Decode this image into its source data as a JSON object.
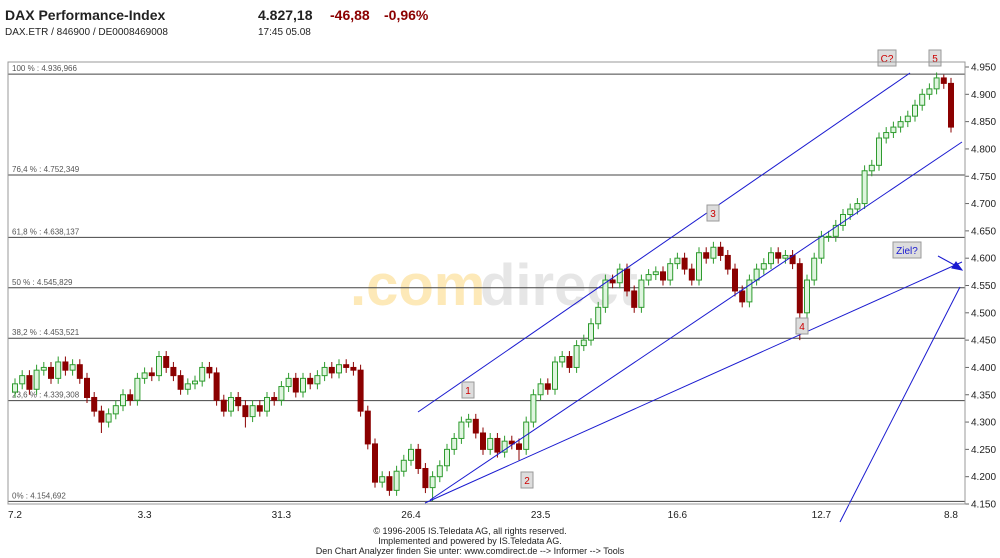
{
  "header": {
    "title": "DAX Performance-Index",
    "price": "4.827,18",
    "change": "-46,88",
    "change_pct": "-0,96%",
    "ids": "DAX.ETR / 846900 / DE0008469008",
    "time": "17:45  05.08"
  },
  "chart_data": {
    "type": "candlestick",
    "watermark_a": ".com",
    "watermark_b": "direct",
    "up_color": "#2e9b2e",
    "down_color": "#8b0000",
    "categories": [
      "7.2",
      null,
      null,
      null,
      null,
      null,
      null,
      null,
      null,
      null,
      null,
      null,
      null,
      null,
      null,
      null,
      null,
      null,
      "3.3",
      null,
      null,
      null,
      null,
      null,
      null,
      null,
      null,
      null,
      null,
      null,
      null,
      null,
      null,
      null,
      null,
      null,
      null,
      "31.3",
      null,
      null,
      null,
      null,
      null,
      null,
      null,
      null,
      null,
      null,
      null,
      null,
      null,
      null,
      null,
      null,
      null,
      "26.4",
      null,
      null,
      null,
      null,
      null,
      null,
      null,
      null,
      null,
      null,
      null,
      null,
      null,
      null,
      null,
      null,
      null,
      "23.5",
      null,
      null,
      null,
      null,
      null,
      null,
      null,
      null,
      null,
      null,
      null,
      null,
      null,
      null,
      null,
      null,
      null,
      null,
      "16.6",
      null,
      null,
      null,
      null,
      null,
      null,
      null,
      null,
      null,
      null,
      null,
      null,
      null,
      null,
      null,
      null,
      null,
      null,
      null,
      "12.7",
      null,
      null,
      null,
      null,
      null,
      null,
      null,
      null,
      null,
      null,
      null,
      null,
      null,
      null,
      null,
      null,
      null,
      "8.8"
    ],
    "open": [
      4355,
      4370,
      4385,
      4360,
      4395,
      4400,
      4380,
      4410,
      4395,
      4405,
      4380,
      4345,
      4320,
      4300,
      4315,
      4330,
      4350,
      4340,
      4380,
      4390,
      4385,
      4420,
      4400,
      4385,
      4360,
      4370,
      4375,
      4400,
      4390,
      4340,
      4320,
      4345,
      4330,
      4310,
      4330,
      4320,
      4345,
      4340,
      4365,
      4380,
      4355,
      4380,
      4370,
      4385,
      4400,
      4390,
      4405,
      4400,
      4395,
      4320,
      4260,
      4190,
      4200,
      4175,
      4210,
      4230,
      4250,
      4215,
      4180,
      4200,
      4220,
      4250,
      4270,
      4300,
      4305,
      4280,
      4250,
      4270,
      4245,
      4265,
      4260,
      4250,
      4300,
      4350,
      4370,
      4360,
      4410,
      4420,
      4400,
      4440,
      4450,
      4480,
      4510,
      4560,
      4555,
      4580,
      4540,
      4510,
      4560,
      4570,
      4575,
      4560,
      4590,
      4600,
      4580,
      4560,
      4610,
      4600,
      4620,
      4605,
      4580,
      4540,
      4520,
      4560,
      4580,
      4590,
      4610,
      4600,
      4605,
      4590,
      4500,
      4560,
      4600,
      4640,
      4640,
      4660,
      4680,
      4690,
      4700,
      4760,
      4770,
      4820,
      4830,
      4840,
      4850,
      4860,
      4880,
      4900,
      4910,
      4930,
      4920
    ],
    "high": [
      4380,
      4395,
      4395,
      4405,
      4410,
      4410,
      4420,
      4420,
      4415,
      4415,
      4390,
      4355,
      4330,
      4325,
      4340,
      4360,
      4360,
      4390,
      4400,
      4400,
      4430,
      4430,
      4410,
      4395,
      4380,
      4385,
      4410,
      4410,
      4400,
      4350,
      4355,
      4355,
      4340,
      4340,
      4340,
      4355,
      4355,
      4375,
      4390,
      4390,
      4390,
      4390,
      4395,
      4410,
      4410,
      4415,
      4415,
      4410,
      4405,
      4330,
      4270,
      4210,
      4210,
      4220,
      4240,
      4260,
      4260,
      4225,
      4210,
      4230,
      4260,
      4280,
      4310,
      4315,
      4315,
      4290,
      4280,
      4280,
      4275,
      4275,
      4270,
      4310,
      4360,
      4380,
      4380,
      4420,
      4430,
      4430,
      4450,
      4460,
      4490,
      4520,
      4570,
      4570,
      4590,
      4590,
      4550,
      4570,
      4580,
      4585,
      4585,
      4600,
      4610,
      4610,
      4590,
      4620,
      4620,
      4630,
      4630,
      4615,
      4590,
      4550,
      4570,
      4590,
      4600,
      4620,
      4620,
      4615,
      4615,
      4600,
      4570,
      4610,
      4650,
      4650,
      4670,
      4690,
      4700,
      4710,
      4770,
      4780,
      4830,
      4840,
      4850,
      4860,
      4870,
      4890,
      4910,
      4920,
      4940,
      4936,
      4930
    ],
    "low": [
      4345,
      4360,
      4350,
      4350,
      4385,
      4370,
      4370,
      4385,
      4385,
      4370,
      4335,
      4310,
      4280,
      4290,
      4305,
      4320,
      4330,
      4330,
      4370,
      4375,
      4375,
      4390,
      4375,
      4350,
      4350,
      4360,
      4365,
      4380,
      4330,
      4310,
      4310,
      4320,
      4290,
      4300,
      4310,
      4310,
      4330,
      4330,
      4355,
      4345,
      4345,
      4360,
      4360,
      4375,
      4380,
      4380,
      4390,
      4385,
      4310,
      4250,
      4180,
      4180,
      4165,
      4165,
      4200,
      4220,
      4205,
      4170,
      4155,
      4190,
      4210,
      4240,
      4260,
      4290,
      4270,
      4240,
      4240,
      4235,
      4235,
      4250,
      4230,
      4240,
      4290,
      4340,
      4350,
      4350,
      4400,
      4390,
      4390,
      4430,
      4440,
      4470,
      4500,
      4545,
      4545,
      4530,
      4500,
      4500,
      4550,
      4560,
      4550,
      4550,
      4580,
      4570,
      4550,
      4550,
      4590,
      4590,
      4595,
      4570,
      4530,
      4510,
      4510,
      4550,
      4570,
      4580,
      4590,
      4590,
      4580,
      4450,
      4490,
      4550,
      4590,
      4630,
      4630,
      4650,
      4670,
      4680,
      4690,
      4750,
      4760,
      4810,
      4820,
      4830,
      4840,
      4850,
      4870,
      4890,
      4900,
      4910,
      4830
    ],
    "close": [
      4370,
      4385,
      4360,
      4395,
      4400,
      4380,
      4410,
      4395,
      4405,
      4380,
      4345,
      4320,
      4300,
      4315,
      4330,
      4350,
      4340,
      4380,
      4390,
      4385,
      4420,
      4400,
      4385,
      4360,
      4370,
      4375,
      4400,
      4390,
      4340,
      4320,
      4345,
      4330,
      4310,
      4330,
      4320,
      4345,
      4340,
      4365,
      4380,
      4355,
      4380,
      4370,
      4385,
      4400,
      4390,
      4405,
      4400,
      4395,
      4320,
      4260,
      4190,
      4200,
      4175,
      4210,
      4230,
      4250,
      4215,
      4180,
      4200,
      4220,
      4250,
      4270,
      4300,
      4305,
      4280,
      4250,
      4270,
      4245,
      4265,
      4260,
      4250,
      4300,
      4350,
      4370,
      4360,
      4410,
      4420,
      4400,
      4440,
      4450,
      4480,
      4510,
      4560,
      4555,
      4580,
      4540,
      4510,
      4560,
      4570,
      4575,
      4560,
      4590,
      4600,
      4580,
      4560,
      4610,
      4600,
      4620,
      4605,
      4580,
      4540,
      4520,
      4560,
      4580,
      4590,
      4610,
      4600,
      4605,
      4590,
      4500,
      4560,
      4600,
      4640,
      4640,
      4660,
      4680,
      4690,
      4700,
      4760,
      4770,
      4820,
      4830,
      4840,
      4850,
      4860,
      4880,
      4900,
      4910,
      4930,
      4920,
      4840
    ],
    "ylim": [
      4150,
      4950
    ],
    "yticks": [
      {
        "value": 4150,
        "label": "4.150"
      },
      {
        "value": 4200,
        "label": "4.200"
      },
      {
        "value": 4250,
        "label": "4.250"
      },
      {
        "value": 4300,
        "label": "4.300"
      },
      {
        "value": 4350,
        "label": "4.350"
      },
      {
        "value": 4400,
        "label": "4.400"
      },
      {
        "value": 4450,
        "label": "4.450"
      },
      {
        "value": 4500,
        "label": "4.500"
      },
      {
        "value": 4550,
        "label": "4.550"
      },
      {
        "value": 4600,
        "label": "4.600"
      },
      {
        "value": 4650,
        "label": "4.650"
      },
      {
        "value": 4700,
        "label": "4.700"
      },
      {
        "value": 4750,
        "label": "4.750"
      },
      {
        "value": 4800,
        "label": "4.800"
      },
      {
        "value": 4850,
        "label": "4.850"
      },
      {
        "value": 4900,
        "label": "4.900"
      },
      {
        "value": 4950,
        "label": "4.950"
      }
    ],
    "fib_levels": [
      {
        "value": 4936.966,
        "label": "100 % : 4.936,966"
      },
      {
        "value": 4752.349,
        "label": "76,4 % : 4.752,349"
      },
      {
        "value": 4638.137,
        "label": "61,8 % : 4.638,137"
      },
      {
        "value": 4545.829,
        "label": "50 % : 4.545,829"
      },
      {
        "value": 4453.521,
        "label": "38,2 % : 4.453,521"
      },
      {
        "value": 4339.308,
        "label": "23,6 % : 4.339,308"
      },
      {
        "value": 4154.692,
        "label": "0% : 4.154,692"
      }
    ],
    "waves": [
      "1",
      "2",
      "3",
      "4",
      "5",
      "C?",
      "Ziel?"
    ]
  },
  "footer": [
    "© 1996-2005 IS.Teledata AG, all rights reserved.",
    "Implemented and powered by IS.Teledata AG.",
    "Den Chart Analyzer finden Sie unter: www.comdirect.de --> Informer --> Tools"
  ]
}
